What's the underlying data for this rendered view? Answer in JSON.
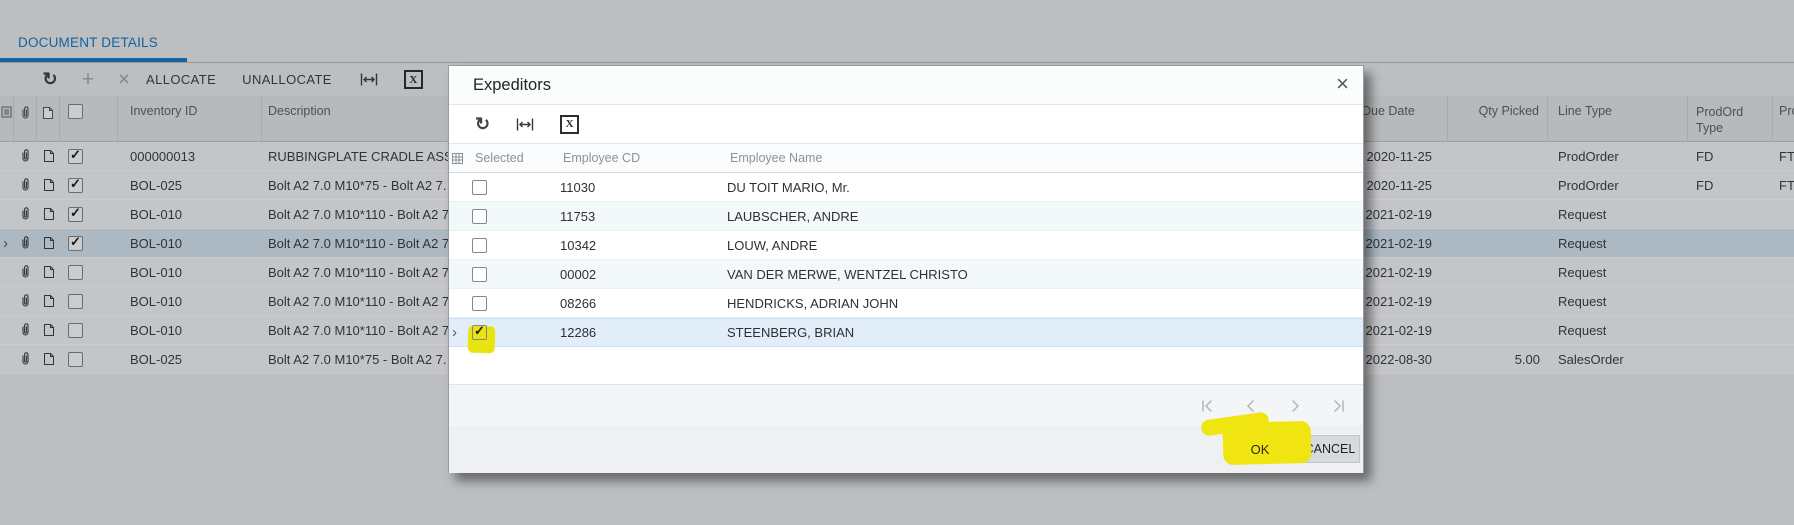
{
  "page": {
    "tab_label": "DOCUMENT DETAILS",
    "toolbar": {
      "allocate_label": "ALLOCATE",
      "unallocate_label": "UNALLOCATE",
      "icons": [
        "refresh-icon",
        "add-icon",
        "delete-icon",
        "fit-width-icon",
        "export-to-excel-icon"
      ]
    },
    "grid": {
      "headers": {
        "inventory_id": "Inventory ID",
        "description": "Description",
        "due_date": "Due Date",
        "qty_picked": "Qty Picked",
        "line_type": "Line Type",
        "prodord_type": "ProdOrd Type",
        "pro": "Pro"
      },
      "rows": [
        {
          "selected": false,
          "checked": true,
          "inventory_id": "000000013",
          "description": "RUBBINGPLATE CRADLE ASS",
          "due_date": "2020-11-25",
          "qty_picked": "",
          "line_type": "ProdOrder",
          "prodord_type": "FD",
          "pro": "FT"
        },
        {
          "selected": false,
          "checked": true,
          "inventory_id": "BOL-025",
          "description": "Bolt A2 7.0 M10*75 - Bolt A2 7.",
          "due_date": "2020-11-25",
          "qty_picked": "",
          "line_type": "ProdOrder",
          "prodord_type": "FD",
          "pro": "FT"
        },
        {
          "selected": false,
          "checked": true,
          "inventory_id": "BOL-010",
          "description": "Bolt A2 7.0 M10*110 - Bolt A2 7",
          "due_date": "2021-02-19",
          "qty_picked": "",
          "line_type": "Request",
          "prodord_type": "",
          "pro": ""
        },
        {
          "selected": true,
          "checked": true,
          "inventory_id": "BOL-010",
          "description": "Bolt A2 7.0 M10*110 - Bolt A2 7",
          "due_date": "2021-02-19",
          "qty_picked": "",
          "line_type": "Request",
          "prodord_type": "",
          "pro": ""
        },
        {
          "selected": false,
          "checked": false,
          "inventory_id": "BOL-010",
          "description": "Bolt A2 7.0 M10*110 - Bolt A2 7",
          "due_date": "2021-02-19",
          "qty_picked": "",
          "line_type": "Request",
          "prodord_type": "",
          "pro": ""
        },
        {
          "selected": false,
          "checked": false,
          "inventory_id": "BOL-010",
          "description": "Bolt A2 7.0 M10*110 - Bolt A2 7",
          "due_date": "2021-02-19",
          "qty_picked": "",
          "line_type": "Request",
          "prodord_type": "",
          "pro": ""
        },
        {
          "selected": false,
          "checked": false,
          "inventory_id": "BOL-010",
          "description": "Bolt A2 7.0 M10*110 - Bolt A2 7",
          "due_date": "2021-02-19",
          "qty_picked": "",
          "line_type": "Request",
          "prodord_type": "",
          "pro": ""
        },
        {
          "selected": false,
          "checked": false,
          "inventory_id": "BOL-025",
          "description": "Bolt A2 7.0 M10*75 - Bolt A2 7.",
          "due_date": "2022-08-30",
          "qty_picked": "5.00",
          "line_type": "SalesOrder",
          "prodord_type": "",
          "pro": ""
        }
      ]
    }
  },
  "modal": {
    "title": "Expeditors",
    "toolbar_icons": [
      "refresh-icon",
      "fit-width-icon",
      "export-to-excel-icon"
    ],
    "grid": {
      "headers": {
        "selected": "Selected",
        "employee_cd": "Employee CD",
        "employee_name": "Employee Name"
      },
      "rows": [
        {
          "selected": false,
          "checked": false,
          "highlight": false,
          "employee_cd": "11030",
          "employee_name": "DU TOIT MARIO, Mr."
        },
        {
          "selected": false,
          "checked": false,
          "highlight": false,
          "employee_cd": "11753",
          "employee_name": "LAUBSCHER, ANDRE"
        },
        {
          "selected": false,
          "checked": false,
          "highlight": false,
          "employee_cd": "10342",
          "employee_name": "LOUW, ANDRE"
        },
        {
          "selected": false,
          "checked": false,
          "highlight": false,
          "employee_cd": "00002",
          "employee_name": "VAN DER MERWE, WENTZEL CHRISTO"
        },
        {
          "selected": false,
          "checked": false,
          "highlight": false,
          "employee_cd": "08266",
          "employee_name": "HENDRICKS, ADRIAN JOHN"
        },
        {
          "selected": true,
          "checked": true,
          "highlight": true,
          "employee_cd": "12286",
          "employee_name": "STEENBERG, BRIAN"
        }
      ]
    },
    "pagination_icons": [
      "first-page-icon",
      "prev-page-icon",
      "next-page-icon",
      "last-page-icon"
    ],
    "ok_label": "OK",
    "cancel_label": "CANCEL"
  },
  "colors": {
    "accent_blue": "#1779c4",
    "selection_blue": "#d8e7f3",
    "highlight_yellow": "#f0e411"
  }
}
